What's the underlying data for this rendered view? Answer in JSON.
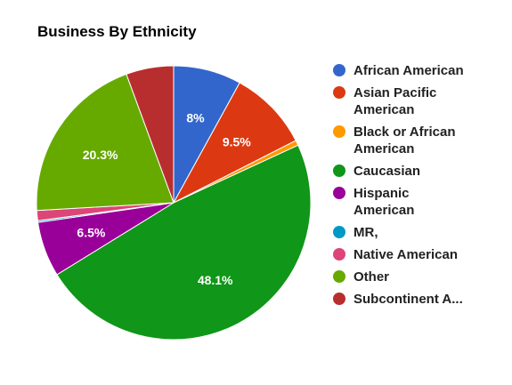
{
  "chart_data": {
    "type": "pie",
    "title": "Business By Ethnicity",
    "legend_position": "right",
    "slices": [
      {
        "name": "African American",
        "value": 8.0,
        "label": "8%",
        "color": "#3366cc"
      },
      {
        "name": "Asian Pacific\nAmerican",
        "value": 9.5,
        "label": "9.5%",
        "color": "#dc3912"
      },
      {
        "name": "Black or African\nAmerican",
        "value": 0.6,
        "label": "",
        "color": "#ff9900"
      },
      {
        "name": "Caucasian",
        "value": 48.1,
        "label": "48.1%",
        "color": "#109618"
      },
      {
        "name": "Hispanic\nAmerican",
        "value": 6.5,
        "label": "6.5%",
        "color": "#990099"
      },
      {
        "name": "MR,",
        "value": 0.2,
        "label": "",
        "color": "#0099c6"
      },
      {
        "name": "Native American",
        "value": 1.2,
        "label": "",
        "color": "#dd4477"
      },
      {
        "name": "Other",
        "value": 20.3,
        "label": "20.3%",
        "color": "#66aa00"
      },
      {
        "name": "Subcontinent A...",
        "value": 5.6,
        "label": "",
        "color": "#b82e2e"
      }
    ]
  }
}
